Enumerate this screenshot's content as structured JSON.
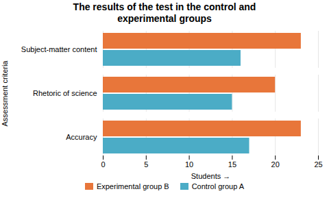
{
  "chart_data": {
    "type": "bar",
    "orientation": "horizontal",
    "title": "The results of the test in the control and\nexperimental groups",
    "categories": [
      "Accuracy",
      "Rhetoric of science",
      "Subject-matter content"
    ],
    "series": [
      {
        "name": "Experimental group B",
        "color": "#E8763A",
        "values": [
          23,
          20,
          23
        ]
      },
      {
        "name": "Control group A",
        "color": "#4BACC6",
        "values": [
          17,
          15,
          16
        ]
      }
    ],
    "xlabel": "Students",
    "ylabel": "Assessment criteria",
    "xlim": [
      0,
      25
    ],
    "xticks": [
      0,
      5,
      10,
      15,
      20,
      25
    ],
    "grid": true,
    "legend": "lower center"
  }
}
